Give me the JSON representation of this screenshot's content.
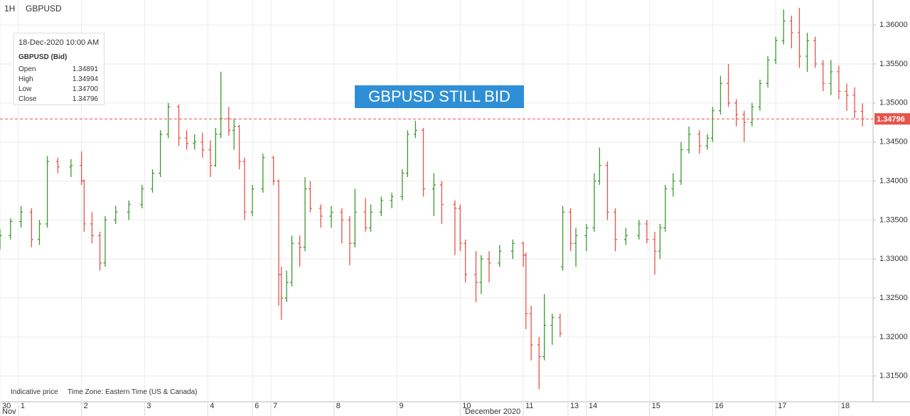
{
  "header": {
    "interval": "1H",
    "symbol": "GBPUSD"
  },
  "tooltip": {
    "date": "18-Dec-2020 10:00 AM",
    "symbol": "GBPUSD (Bid)",
    "rows": [
      [
        "Open",
        "1.34891"
      ],
      [
        "High",
        "1.34994"
      ],
      [
        "Low",
        "1.34700"
      ],
      [
        "Close",
        "1.34796"
      ]
    ]
  },
  "footer": {
    "note": "Indicative price",
    "timezone": "Time Zone: Eastern Time (US & Canada)"
  },
  "chart_data": {
    "type": "ohlc",
    "annotation": "GBPUSD  STILL BID",
    "up_color": "#3a9a2f",
    "down_color": "#e8534a",
    "grid": true,
    "current_price": {
      "value": 1.34796,
      "label": "1.34796",
      "color": "#e8534a"
    },
    "xlim": [
      0,
      332
    ],
    "xticks": [
      {
        "value": 0,
        "label": "30"
      },
      {
        "value": 7,
        "label": "1"
      },
      {
        "value": 31,
        "label": "2"
      },
      {
        "value": 55,
        "label": "3"
      },
      {
        "value": 79,
        "label": "4"
      },
      {
        "value": 96,
        "label": "6"
      },
      {
        "value": 103,
        "label": "7"
      },
      {
        "value": 127,
        "label": "8"
      },
      {
        "value": 151,
        "label": "9"
      },
      {
        "value": 175,
        "label": "10"
      },
      {
        "value": 199,
        "label": "11"
      },
      {
        "value": 216,
        "label": "13"
      },
      {
        "value": 223,
        "label": "14"
      },
      {
        "value": 247,
        "label": "15"
      },
      {
        "value": 271,
        "label": "16"
      },
      {
        "value": 295,
        "label": "17"
      },
      {
        "value": 319,
        "label": "18"
      }
    ],
    "xperiods": [
      {
        "value": 0,
        "label": "Nov"
      },
      {
        "value": 176,
        "label": "December 2020"
      }
    ],
    "ylim": [
      1.3117,
      1.3632
    ],
    "yticks": [
      {
        "value": 1.315,
        "label": "1.31500"
      },
      {
        "value": 1.32,
        "label": "1.32000"
      },
      {
        "value": 1.325,
        "label": "1.32500"
      },
      {
        "value": 1.33,
        "label": "1.33000"
      },
      {
        "value": 1.335,
        "label": "1.33500"
      },
      {
        "value": 1.34,
        "label": "1.34000"
      },
      {
        "value": 1.345,
        "label": "1.34500"
      },
      {
        "value": 1.35,
        "label": "1.35000"
      },
      {
        "value": 1.355,
        "label": "1.35500"
      },
      {
        "value": 1.36,
        "label": "1.36000"
      }
    ],
    "x": [
      0,
      4,
      8,
      12,
      15,
      18,
      22,
      27,
      31,
      32,
      35,
      38,
      40,
      44,
      49,
      54,
      58,
      61,
      64,
      68,
      71,
      74,
      77,
      80,
      82,
      84,
      87,
      89,
      91,
      93,
      96,
      100,
      104,
      106,
      107,
      109,
      111,
      114,
      116,
      118,
      122,
      126,
      130,
      133,
      135,
      139,
      141,
      145,
      149,
      153,
      155,
      158,
      161,
      165,
      168,
      173,
      175,
      177,
      181,
      183,
      186,
      190,
      195,
      199,
      200,
      202,
      205,
      207,
      210,
      213,
      214,
      217,
      219,
      223,
      226,
      228,
      231,
      234,
      238,
      243,
      246,
      249,
      251,
      253,
      256,
      259,
      262,
      266,
      269,
      271,
      274,
      277,
      280,
      283,
      286,
      289,
      292,
      295,
      298,
      301,
      304,
      307,
      310,
      313,
      316,
      319,
      322,
      325,
      328
    ],
    "ohlc": [
      [
        1.332,
        1.3338,
        1.3312,
        1.333
      ],
      [
        1.333,
        1.3352,
        1.3325,
        1.3348
      ],
      [
        1.3348,
        1.3368,
        1.334,
        1.336
      ],
      [
        1.336,
        1.3365,
        1.3315,
        1.3325
      ],
      [
        1.3325,
        1.335,
        1.3318,
        1.3345
      ],
      [
        1.3345,
        1.3432,
        1.334,
        1.3425
      ],
      [
        1.3425,
        1.343,
        1.341,
        1.3418
      ],
      [
        1.3418,
        1.3428,
        1.3405,
        1.342
      ],
      [
        1.342,
        1.3438,
        1.3395,
        1.34
      ],
      [
        1.34,
        1.3402,
        1.3335,
        1.3345
      ],
      [
        1.3345,
        1.336,
        1.332,
        1.333
      ],
      [
        1.333,
        1.3335,
        1.3285,
        1.3295
      ],
      [
        1.3295,
        1.3355,
        1.329,
        1.335
      ],
      [
        1.335,
        1.3368,
        1.3345,
        1.336
      ],
      [
        1.336,
        1.3375,
        1.335,
        1.337
      ],
      [
        1.337,
        1.3395,
        1.3365,
        1.339
      ],
      [
        1.339,
        1.3415,
        1.3385,
        1.341
      ],
      [
        1.341,
        1.3465,
        1.3405,
        1.346
      ],
      [
        1.346,
        1.35,
        1.3455,
        1.3495
      ],
      [
        1.3495,
        1.3498,
        1.3445,
        1.3455
      ],
      [
        1.3455,
        1.3465,
        1.344,
        1.3448
      ],
      [
        1.3448,
        1.346,
        1.344,
        1.345
      ],
      [
        1.345,
        1.3462,
        1.343,
        1.344
      ],
      [
        1.344,
        1.3452,
        1.3405,
        1.342
      ],
      [
        1.342,
        1.3468,
        1.3418,
        1.346
      ],
      [
        1.346,
        1.354,
        1.3455,
        1.348
      ],
      [
        1.348,
        1.3495,
        1.3458,
        1.3465
      ],
      [
        1.3465,
        1.348,
        1.344,
        1.347
      ],
      [
        1.347,
        1.3472,
        1.3415,
        1.3425
      ],
      [
        1.3425,
        1.343,
        1.335,
        1.336
      ],
      [
        1.336,
        1.3395,
        1.3355,
        1.339
      ],
      [
        1.339,
        1.3435,
        1.3385,
        1.343
      ],
      [
        1.343,
        1.3432,
        1.3395,
        1.34
      ],
      [
        1.34,
        1.3402,
        1.324,
        1.328
      ],
      [
        1.328,
        1.329,
        1.3222,
        1.325
      ],
      [
        1.325,
        1.3285,
        1.3245,
        1.327
      ],
      [
        1.327,
        1.333,
        1.3265,
        1.332
      ],
      [
        1.332,
        1.333,
        1.329,
        1.3315
      ],
      [
        1.3315,
        1.3405,
        1.331,
        1.339
      ],
      [
        1.339,
        1.34,
        1.336,
        1.3365
      ],
      [
        1.3365,
        1.337,
        1.334,
        1.3355
      ],
      [
        1.3355,
        1.3368,
        1.334,
        1.336
      ],
      [
        1.336,
        1.3365,
        1.332,
        1.335
      ],
      [
        1.335,
        1.3355,
        1.3292,
        1.332
      ],
      [
        1.332,
        1.339,
        1.3315,
        1.336
      ],
      [
        1.336,
        1.3378,
        1.3335,
        1.334
      ],
      [
        1.334,
        1.337,
        1.3335,
        1.336
      ],
      [
        1.336,
        1.338,
        1.3355,
        1.3375
      ],
      [
        1.3375,
        1.3385,
        1.3365,
        1.338
      ],
      [
        1.338,
        1.3415,
        1.3375,
        1.341
      ],
      [
        1.341,
        1.3465,
        1.3405,
        1.346
      ],
      [
        1.346,
        1.3477,
        1.3455,
        1.3465
      ],
      [
        1.3465,
        1.3468,
        1.338,
        1.339
      ],
      [
        1.339,
        1.341,
        1.3355,
        1.3395
      ],
      [
        1.3395,
        1.34,
        1.3345,
        1.337
      ],
      [
        1.337,
        1.3375,
        1.3305,
        1.3365
      ],
      [
        1.3365,
        1.337,
        1.331,
        1.332
      ],
      [
        1.332,
        1.3325,
        1.327,
        1.328
      ],
      [
        1.328,
        1.331,
        1.3245,
        1.327
      ],
      [
        1.327,
        1.3305,
        1.3255,
        1.33
      ],
      [
        1.33,
        1.331,
        1.327,
        1.3295
      ],
      [
        1.3295,
        1.3318,
        1.329,
        1.331
      ],
      [
        1.331,
        1.3325,
        1.33,
        1.332
      ],
      [
        1.332,
        1.3322,
        1.329,
        1.3305
      ],
      [
        1.3305,
        1.3308,
        1.321,
        1.323
      ],
      [
        1.323,
        1.324,
        1.317,
        1.319
      ],
      [
        1.319,
        1.32,
        1.3133,
        1.3175
      ],
      [
        1.3175,
        1.3255,
        1.317,
        1.3215
      ],
      [
        1.3215,
        1.323,
        1.319,
        1.3225
      ],
      [
        1.3225,
        1.323,
        1.32,
        1.3205
      ],
      [
        1.329,
        1.3368,
        1.3285,
        1.336
      ],
      [
        1.336,
        1.3365,
        1.331,
        1.332
      ],
      [
        1.332,
        1.334,
        1.329,
        1.333
      ],
      [
        1.333,
        1.3345,
        1.331,
        1.334
      ],
      [
        1.334,
        1.341,
        1.3335,
        1.34
      ],
      [
        1.34,
        1.3443,
        1.3395,
        1.342
      ],
      [
        1.342,
        1.3425,
        1.335,
        1.336
      ],
      [
        1.336,
        1.3365,
        1.331,
        1.3325
      ],
      [
        1.3325,
        1.334,
        1.3318,
        1.333
      ],
      [
        1.333,
        1.335,
        1.3325,
        1.3345
      ],
      [
        1.3345,
        1.335,
        1.332,
        1.3325
      ],
      [
        1.3325,
        1.3335,
        1.328,
        1.331
      ],
      [
        1.331,
        1.3345,
        1.33,
        1.334
      ],
      [
        1.334,
        1.3395,
        1.3335,
        1.339
      ],
      [
        1.339,
        1.341,
        1.338,
        1.34
      ],
      [
        1.34,
        1.345,
        1.3395,
        1.344
      ],
      [
        1.344,
        1.347,
        1.3435,
        1.346
      ],
      [
        1.346,
        1.3465,
        1.3435,
        1.3445
      ],
      [
        1.3445,
        1.346,
        1.344,
        1.3455
      ],
      [
        1.3455,
        1.3495,
        1.345,
        1.349
      ],
      [
        1.349,
        1.3535,
        1.3485,
        1.3525
      ],
      [
        1.3525,
        1.355,
        1.3495,
        1.35
      ],
      [
        1.35,
        1.3505,
        1.347,
        1.3485
      ],
      [
        1.3485,
        1.349,
        1.345,
        1.3475
      ],
      [
        1.3475,
        1.35,
        1.347,
        1.3495
      ],
      [
        1.3495,
        1.353,
        1.349,
        1.3525
      ],
      [
        1.3525,
        1.356,
        1.352,
        1.3555
      ],
      [
        1.3555,
        1.3585,
        1.355,
        1.358
      ],
      [
        1.358,
        1.362,
        1.3575,
        1.3605
      ],
      [
        1.3605,
        1.3612,
        1.357,
        1.359
      ],
      [
        1.359,
        1.3622,
        1.3545,
        1.356
      ],
      [
        1.356,
        1.359,
        1.354,
        1.358
      ],
      [
        1.358,
        1.3585,
        1.3545,
        1.355
      ],
      [
        1.355,
        1.3555,
        1.3515,
        1.3525
      ],
      [
        1.3525,
        1.3555,
        1.351,
        1.354
      ],
      [
        1.354,
        1.3548,
        1.3505,
        1.3515
      ],
      [
        1.3515,
        1.3525,
        1.349,
        1.351
      ],
      [
        1.351,
        1.352,
        1.348,
        1.3489
      ],
      [
        1.34891,
        1.34994,
        1.347,
        1.34796
      ]
    ]
  }
}
